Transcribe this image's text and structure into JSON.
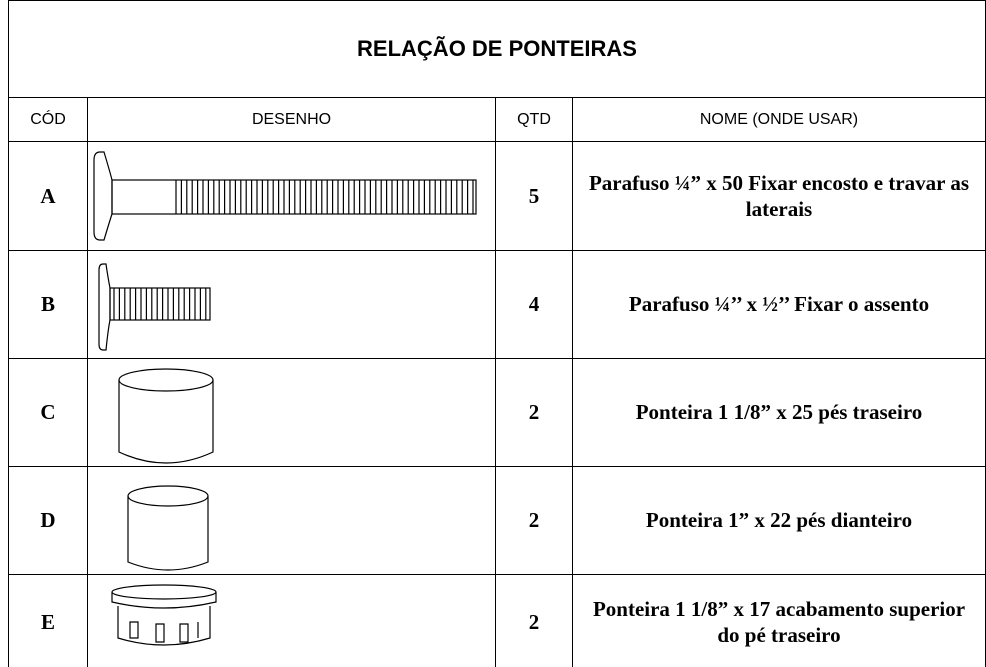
{
  "header": {
    "title": "RELAÇÃO DE PONTEIRAS"
  },
  "table": {
    "columns": [
      "CÓD",
      "DESENHO",
      "QTD",
      "NOME (ONDE USAR)"
    ],
    "rows": [
      {
        "cod": "A",
        "qtd": 5,
        "nome": "Parafuso ¼” x 50 Fixar encosto e travar as laterais"
      },
      {
        "cod": "B",
        "qtd": 4,
        "nome": "Parafuso ¼’’ x ½’’ Fixar o assento"
      },
      {
        "cod": "C",
        "qtd": 2,
        "nome": "Ponteira 1 1/8” x 25 pés traseiro"
      },
      {
        "cod": "D",
        "qtd": 2,
        "nome": "Ponteira 1” x 22 pés dianteiro"
      },
      {
        "cod": "E",
        "qtd": 2,
        "nome": "Ponteira 1 1/8” x 17 acabamento superior do pé traseiro"
      }
    ]
  }
}
